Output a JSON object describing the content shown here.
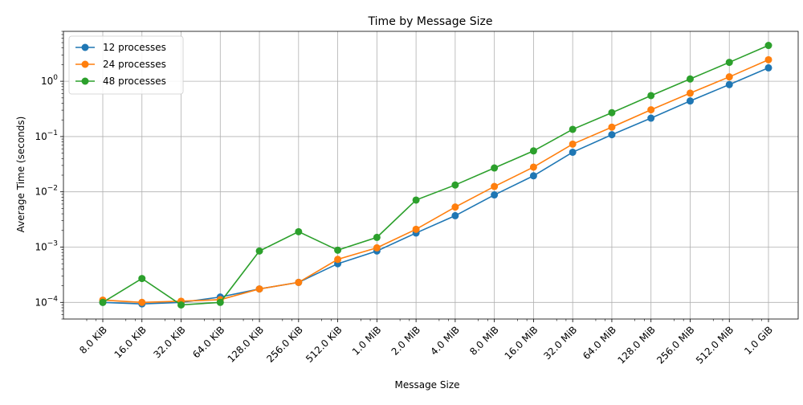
{
  "chart_data": {
    "type": "line",
    "title": "Time by Message Size",
    "xlabel": "Message Size",
    "ylabel": "Average Time (seconds)",
    "yscale": "log",
    "ylim": [
      5e-05,
      8
    ],
    "y_ticks": [
      {
        "value": 0.0001,
        "base": "10",
        "exp": "−4"
      },
      {
        "value": 0.001,
        "base": "10",
        "exp": "−3"
      },
      {
        "value": 0.01,
        "base": "10",
        "exp": "−2"
      },
      {
        "value": 0.1,
        "base": "10",
        "exp": "−1"
      },
      {
        "value": 1,
        "base": "10",
        "exp": "0"
      }
    ],
    "grid": true,
    "legend_position": "top-left",
    "categories": [
      "8.0 KiB",
      "16.0 KiB",
      "32.0 KiB",
      "64.0 KiB",
      "128.0 KiB",
      "256.0 KiB",
      "512.0 KiB",
      "1.0 MiB",
      "2.0 MiB",
      "4.0 MiB",
      "8.0 MiB",
      "16.0 MiB",
      "32.0 MiB",
      "64.0 MiB",
      "128.0 MiB",
      "256.0 MiB",
      "512.0 MiB",
      "1.0 GiB"
    ],
    "series": [
      {
        "name": "12 processes",
        "color": "#1f77b4",
        "values": [
          0.0001,
          9.4e-05,
          0.0001,
          0.000125,
          0.000175,
          0.00023,
          0.0005,
          0.00085,
          0.0018,
          0.0037,
          0.0088,
          0.0195,
          0.052,
          0.108,
          0.215,
          0.44,
          0.87,
          1.75
        ]
      },
      {
        "name": "24 processes",
        "color": "#ff7f0e",
        "values": [
          0.00011,
          0.0001,
          0.000105,
          0.000112,
          0.000175,
          0.00023,
          0.0006,
          0.00097,
          0.0021,
          0.0053,
          0.0125,
          0.028,
          0.073,
          0.148,
          0.305,
          0.61,
          1.2,
          2.45
        ]
      },
      {
        "name": "48 processes",
        "color": "#2ca02c",
        "values": [
          0.0001,
          0.00027,
          9e-05,
          0.0001,
          0.00085,
          0.0019,
          0.00088,
          0.0015,
          0.0071,
          0.0133,
          0.027,
          0.055,
          0.135,
          0.27,
          0.55,
          1.1,
          2.2,
          4.45
        ]
      }
    ]
  }
}
